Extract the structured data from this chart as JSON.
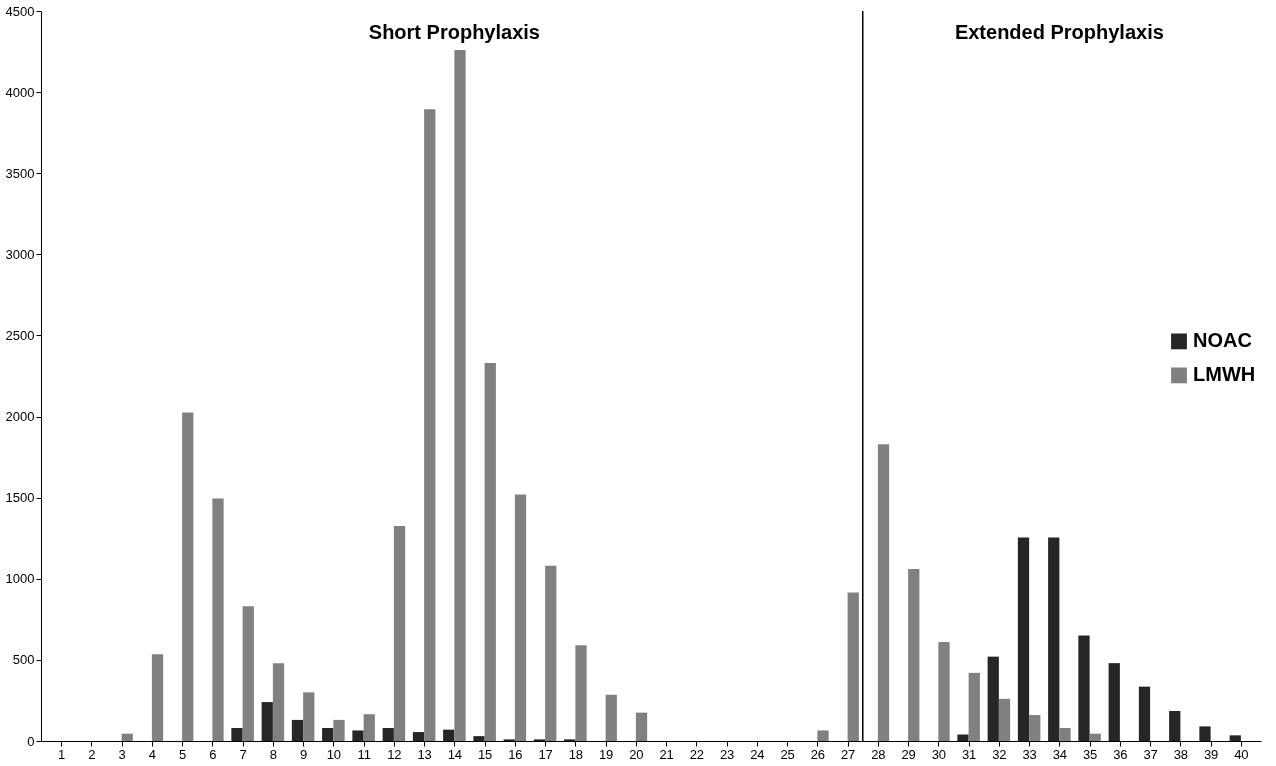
{
  "chart_data": {
    "type": "bar",
    "x": [
      1,
      2,
      3,
      4,
      5,
      6,
      7,
      8,
      9,
      10,
      11,
      12,
      13,
      14,
      15,
      16,
      17,
      18,
      19,
      20,
      21,
      22,
      23,
      24,
      25,
      26,
      27,
      28,
      29,
      30,
      31,
      32,
      33,
      34,
      35,
      36,
      37,
      38,
      39,
      40
    ],
    "xlim": [
      0.5,
      40.5
    ],
    "xticks": [
      1,
      2,
      3,
      4,
      5,
      6,
      7,
      8,
      9,
      10,
      11,
      12,
      13,
      14,
      15,
      16,
      17,
      18,
      19,
      20,
      21,
      22,
      23,
      24,
      25,
      26,
      27,
      28,
      29,
      30,
      31,
      32,
      33,
      34,
      35,
      36,
      37,
      38,
      39,
      40
    ],
    "ylim": [
      0,
      4500
    ],
    "yticks": [
      0,
      500,
      1000,
      1500,
      2000,
      2500,
      3000,
      3500,
      4000,
      4500
    ],
    "series": [
      {
        "name": "NOAC",
        "color": "#262626",
        "values": [
          0,
          0,
          0,
          0,
          0,
          0,
          80,
          240,
          130,
          80,
          65,
          80,
          55,
          70,
          30,
          10,
          10,
          10,
          0,
          0,
          0,
          0,
          0,
          0,
          0,
          0,
          0,
          0,
          0,
          0,
          40,
          520,
          1255,
          1255,
          650,
          480,
          335,
          185,
          90,
          35
        ]
      },
      {
        "name": "LMWH",
        "color": "#808080",
        "values": [
          0,
          0,
          45,
          535,
          2025,
          1495,
          830,
          480,
          300,
          130,
          165,
          1325,
          3895,
          4260,
          2330,
          1520,
          1080,
          590,
          285,
          175,
          0,
          0,
          0,
          0,
          0,
          65,
          915,
          1830,
          1060,
          610,
          420,
          260,
          160,
          80,
          45,
          0,
          0,
          0,
          0,
          0
        ]
      }
    ],
    "ref_lines": [
      {
        "axis": "x",
        "value": 27.5,
        "color": "#000000"
      }
    ],
    "annotations": [
      "Short Prophylaxis",
      "Extended Prophylaxis"
    ],
    "legend": "right",
    "grid": false
  }
}
